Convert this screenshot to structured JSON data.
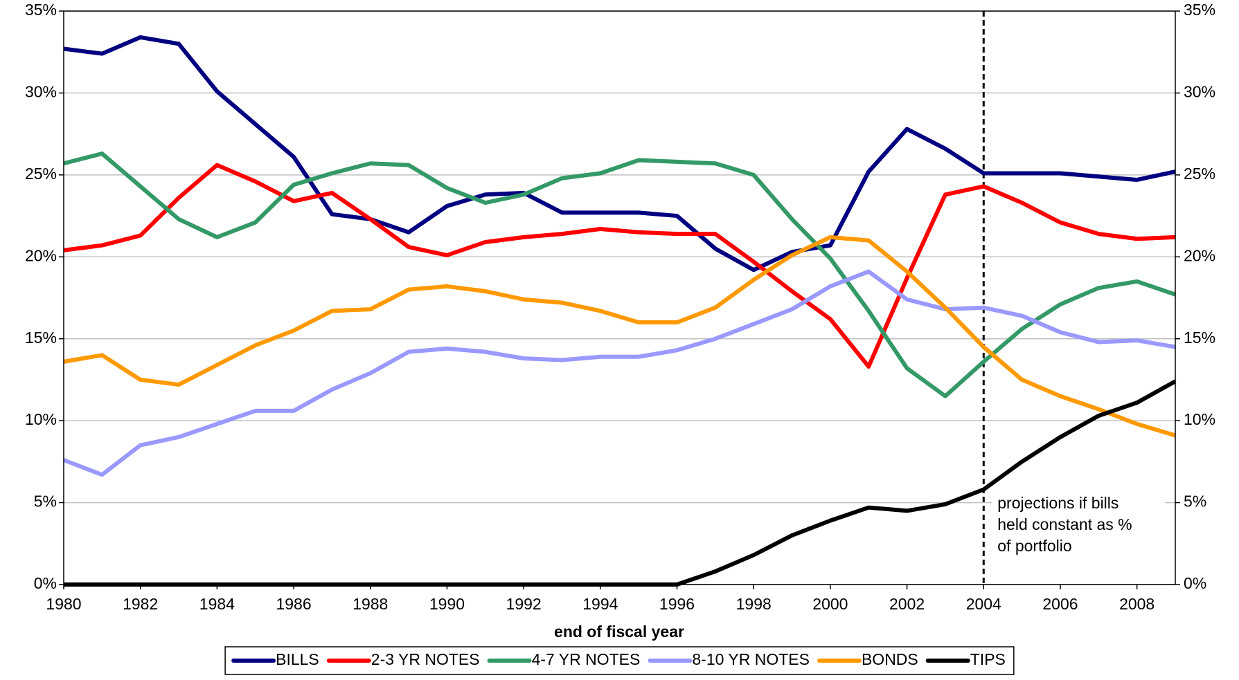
{
  "chart_data": {
    "type": "line",
    "x_label": "end of fiscal year",
    "x": [
      1980,
      1981,
      1982,
      1983,
      1984,
      1985,
      1986,
      1987,
      1988,
      1989,
      1990,
      1991,
      1992,
      1993,
      1994,
      1995,
      1996,
      1997,
      1998,
      1999,
      2000,
      2001,
      2002,
      2003,
      2004,
      2005,
      2006,
      2007,
      2008,
      2009
    ],
    "xlim": [
      1980,
      2009
    ],
    "xticks": [
      1980,
      1982,
      1984,
      1986,
      1988,
      1990,
      1992,
      1994,
      1996,
      1998,
      2000,
      2002,
      2004,
      2006,
      2008
    ],
    "ylim": [
      0,
      35
    ],
    "yticks": [
      {
        "value": 0,
        "label": "0%"
      },
      {
        "value": 5,
        "label": "5%"
      },
      {
        "value": 10,
        "label": "10%"
      },
      {
        "value": 15,
        "label": "15%"
      },
      {
        "value": 20,
        "label": "20%"
      },
      {
        "value": 25,
        "label": "25%"
      },
      {
        "value": 30,
        "label": "30%"
      },
      {
        "value": 35,
        "label": "35%"
      }
    ],
    "y2lim": [
      0,
      35
    ],
    "y2ticks": [
      {
        "value": 0,
        "label": "0%"
      },
      {
        "value": 5,
        "label": "5%"
      },
      {
        "value": 10,
        "label": "10%"
      },
      {
        "value": 15,
        "label": "15%"
      },
      {
        "value": 20,
        "label": "20%"
      },
      {
        "value": 25,
        "label": "25%"
      },
      {
        "value": 30,
        "label": "30%"
      },
      {
        "value": 35,
        "label": "35%"
      }
    ],
    "grid": true,
    "legend": "bottom",
    "series": [
      {
        "name": "BILLS",
        "color": "#000080",
        "values": [
          32.7,
          32.4,
          33.4,
          33.0,
          30.1,
          28.1,
          26.1,
          22.6,
          22.3,
          21.5,
          23.1,
          23.8,
          23.9,
          22.7,
          22.7,
          22.7,
          22.5,
          20.5,
          19.2,
          20.3,
          20.7,
          25.2,
          27.8,
          26.6,
          25.1,
          25.1,
          25.1,
          24.9,
          24.7,
          25.2
        ]
      },
      {
        "name": "2-3 YR NOTES",
        "color": "#ff0000",
        "values": [
          20.4,
          20.7,
          21.3,
          23.6,
          25.6,
          24.6,
          23.4,
          23.9,
          22.3,
          20.6,
          20.1,
          20.9,
          21.2,
          21.4,
          21.7,
          21.5,
          21.4,
          21.4,
          19.7,
          17.9,
          16.2,
          13.3,
          18.7,
          23.8,
          24.3,
          23.3,
          22.1,
          21.4,
          21.1,
          21.2
        ]
      },
      {
        "name": "4-7 YR NOTES",
        "color": "#339966",
        "values": [
          25.7,
          26.3,
          24.3,
          22.3,
          21.2,
          22.1,
          24.4,
          25.1,
          25.7,
          25.6,
          24.2,
          23.3,
          23.8,
          24.8,
          25.1,
          25.9,
          25.8,
          25.7,
          25.0,
          22.3,
          19.9,
          16.7,
          13.2,
          11.5,
          13.6,
          15.6,
          17.1,
          18.1,
          18.5,
          17.7
        ]
      },
      {
        "name": "8-10 YR NOTES",
        "color": "#9999ff",
        "values": [
          7.6,
          6.7,
          8.5,
          9.0,
          9.8,
          10.6,
          10.6,
          11.9,
          12.9,
          14.2,
          14.4,
          14.2,
          13.8,
          13.7,
          13.9,
          13.9,
          14.3,
          15.0,
          15.9,
          16.8,
          18.2,
          19.1,
          17.4,
          16.8,
          16.9,
          16.4,
          15.4,
          14.8,
          14.9,
          14.5
        ]
      },
      {
        "name": "BONDS",
        "color": "#ff9900",
        "values": [
          13.6,
          14.0,
          12.5,
          12.2,
          13.4,
          14.6,
          15.5,
          16.7,
          16.8,
          18.0,
          18.2,
          17.9,
          17.4,
          17.2,
          16.7,
          16.0,
          16.0,
          16.9,
          18.6,
          20.1,
          21.2,
          21.0,
          19.1,
          16.9,
          14.5,
          12.5,
          11.5,
          10.7,
          9.8,
          9.1
        ]
      },
      {
        "name": "TIPS",
        "color": "#000000",
        "values": [
          0,
          0,
          0,
          0,
          0,
          0,
          0,
          0,
          0,
          0,
          0,
          0,
          0,
          0,
          0,
          0,
          0,
          0.8,
          1.8,
          3.0,
          3.9,
          4.7,
          4.5,
          4.9,
          5.8,
          7.5,
          9.0,
          10.3,
          11.1,
          12.4
        ]
      }
    ],
    "annotation": {
      "x": 2004,
      "lines": [
        "projections  if bills",
        "held constant as %",
        "of portfolio"
      ]
    }
  }
}
